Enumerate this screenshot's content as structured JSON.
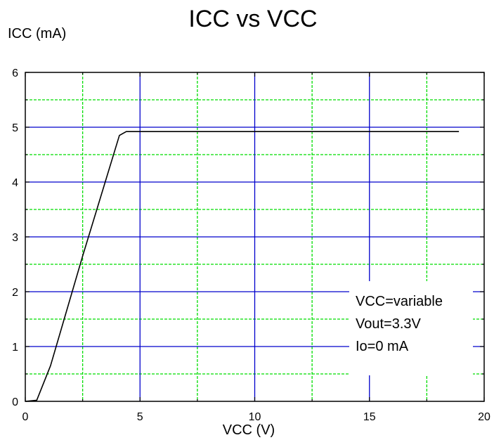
{
  "chart_data": {
    "type": "line",
    "title": "ICC vs VCC",
    "xlabel": "VCC (V)",
    "ylabel": "ICC (mA)",
    "xlim": [
      0,
      20
    ],
    "ylim": [
      0,
      6
    ],
    "x_major_ticks": [
      0,
      5,
      10,
      15,
      20
    ],
    "x_minor_gridlines": [
      2.5,
      7.5,
      12.5,
      17.5
    ],
    "y_major_ticks": [
      0,
      1,
      2,
      3,
      4,
      5,
      6
    ],
    "y_minor_gridlines": [
      0.5,
      1.5,
      2.5,
      3.5,
      4.5,
      5.5
    ],
    "grid": true,
    "major_grid_color": "#0000cc",
    "minor_grid_color": "#00dd00",
    "series": [
      {
        "color": "#000000",
        "x": [
          0.0,
          0.5,
          1.1,
          2.5,
          4.1,
          4.4,
          18.9
        ],
        "y": [
          0.0,
          0.02,
          0.65,
          2.65,
          4.85,
          4.92,
          4.92
        ]
      }
    ],
    "annotations": [
      "VCC=variable",
      "Vout=3.3V",
      "Io=0 mA"
    ],
    "annotation_placement": "bottom-right"
  }
}
